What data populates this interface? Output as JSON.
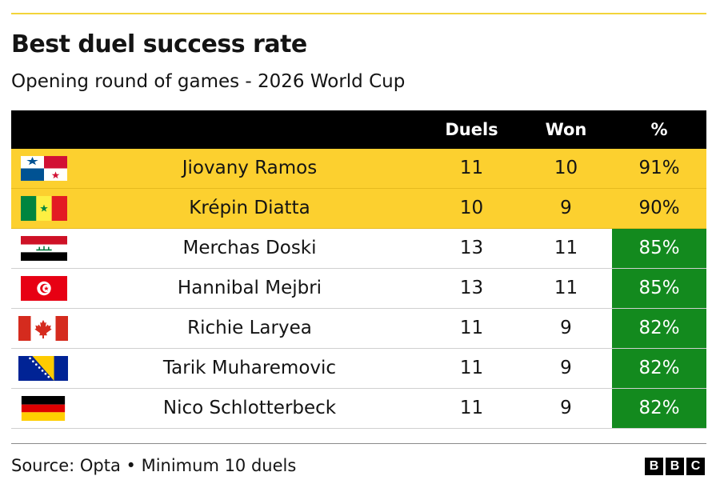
{
  "chart_data": {
    "type": "table",
    "title": "Best duel success rate",
    "subtitle": "Opening round of games - 2026 World Cup",
    "columns": [
      "",
      "Duels",
      "Won",
      "%"
    ],
    "rows": [
      {
        "flag": "panama-flag-icon",
        "name": "Jiovany Ramos",
        "duels": "11",
        "won": "10",
        "pct": "91%",
        "highlight": true,
        "pct_green": false
      },
      {
        "flag": "senegal-flag-icon",
        "name": "Krépin Diatta",
        "duels": "10",
        "won": "9",
        "pct": "90%",
        "highlight": true,
        "pct_green": false
      },
      {
        "flag": "iraq-flag-icon",
        "name": "Merchas Doski",
        "duels": "13",
        "won": "11",
        "pct": "85%",
        "highlight": false,
        "pct_green": true
      },
      {
        "flag": "tunisia-flag-icon",
        "name": "Hannibal Mejbri",
        "duels": "13",
        "won": "11",
        "pct": "85%",
        "highlight": false,
        "pct_green": true
      },
      {
        "flag": "canada-flag-icon",
        "name": "Richie Laryea",
        "duels": "11",
        "won": "9",
        "pct": "82%",
        "highlight": false,
        "pct_green": true
      },
      {
        "flag": "bosnia-flag-icon",
        "name": "Tarik Muharemovic",
        "duels": "11",
        "won": "9",
        "pct": "82%",
        "highlight": false,
        "pct_green": true
      },
      {
        "flag": "germany-flag-icon",
        "name": "Nico Schlotterbeck",
        "duels": "11",
        "won": "9",
        "pct": "82%",
        "highlight": false,
        "pct_green": true
      }
    ],
    "source": "Source: Opta • Minimum 10 duels",
    "colors": {
      "highlight": "#fcd02f",
      "green": "#138a1e",
      "header": "#000000"
    }
  },
  "logo": {
    "letters": [
      "B",
      "B",
      "C"
    ]
  }
}
